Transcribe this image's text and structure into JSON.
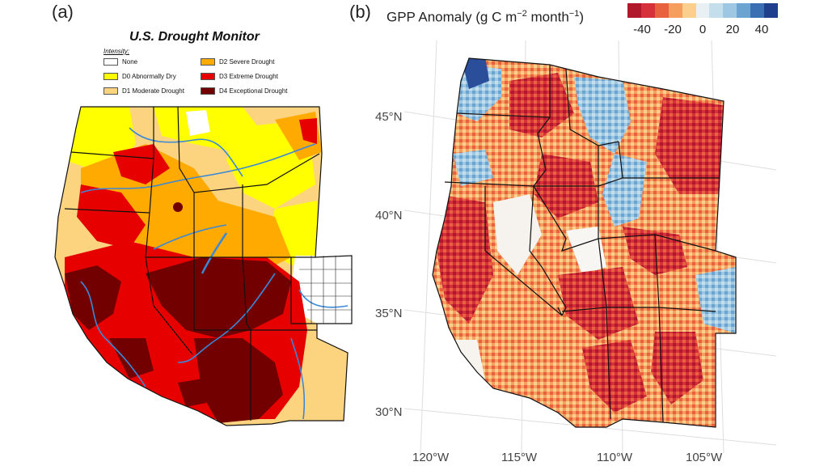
{
  "panel_a": {
    "label": "(a)",
    "title": "U.S. Drought Monitor",
    "intensity_label": "Intensity:",
    "legend": [
      {
        "label": "None",
        "color": "#ffffff"
      },
      {
        "label": "D0 Abnormally Dry",
        "color": "#ffff00"
      },
      {
        "label": "D1 Moderate Drought",
        "color": "#fcd37f"
      },
      {
        "label": "D2 Severe Drought",
        "color": "#ffaa00"
      },
      {
        "label": "D3 Extreme Drought",
        "color": "#e60000"
      },
      {
        "label": "D4 Exceptional Drought",
        "color": "#730000"
      }
    ]
  },
  "panel_b": {
    "label": "(b)",
    "title_main": "GPP Anomaly (g C m",
    "title_exp1": "−2",
    "title_mid": " month",
    "title_exp2": "−1",
    "title_end": ")",
    "colorbar_colors": [
      "#b2182b",
      "#d6303a",
      "#e8623f",
      "#f59e5d",
      "#fbd08f",
      "#e8f0f4",
      "#c5deec",
      "#9dc7e2",
      "#6ba4d0",
      "#3a6fb3",
      "#1f3f8c"
    ],
    "colorbar_ticks": [
      "-40",
      "-20",
      "0",
      "20",
      "40"
    ],
    "lat_labels": [
      "45°N",
      "40°N",
      "35°N",
      "30°N"
    ],
    "lon_labels": [
      "120°W",
      "115°W",
      "110°W",
      "105°W"
    ]
  }
}
